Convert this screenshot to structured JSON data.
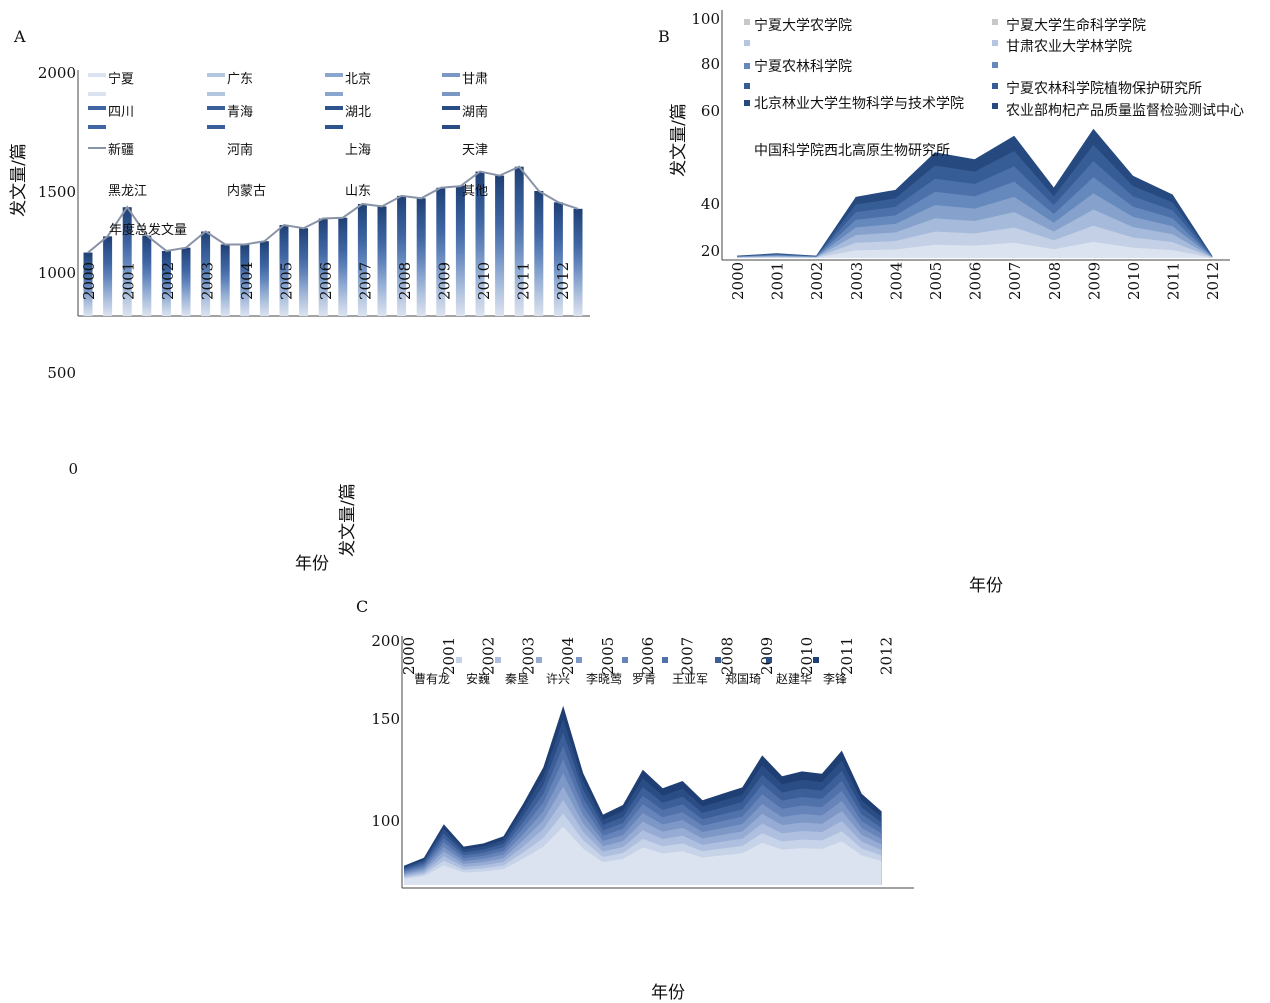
{
  "chart_data": [
    {
      "panel_label": "A",
      "type": "bar",
      "ylabel": "发文量/篇",
      "xlabel": "年份",
      "y_ticks": [
        "2000",
        "1500",
        "1000",
        "500",
        "0"
      ],
      "ylim": [
        0,
        2000
      ],
      "categories": [
        "2000",
        "2001",
        "2002",
        "2003",
        "2004",
        "2005",
        "2006",
        "2007",
        "2008",
        "2009",
        "2010",
        "2011",
        "2012"
      ],
      "total_series_name": "年度总发文量",
      "total_values": [
        1120,
        1400,
        1130,
        1250,
        1170,
        1290,
        1330,
        1420,
        1470,
        1520,
        1620,
        1650,
        1430
      ],
      "legend": [
        "宁夏",
        "广东",
        "北京",
        "甘肃",
        "四川",
        "青海",
        "湖北",
        "湖南",
        "新疆",
        "河南",
        "上海",
        "天津",
        "黑龙江",
        "内蒙古",
        "山东",
        "其他",
        "年度总发文量"
      ],
      "colors": [
        "#dce3f0",
        "#b5c6e0",
        "#8aa6cf",
        "#5f82b9",
        "#3f66a3",
        "#2e548e",
        "#1f3f73"
      ]
    },
    {
      "panel_label": "B",
      "type": "area",
      "ylabel": "发文量/篇",
      "xlabel": "年份",
      "y_ticks": [
        "100",
        "80",
        "60",
        "40",
        "20"
      ],
      "ylim": [
        0,
        100
      ],
      "categories": [
        "2000",
        "2001",
        "2002",
        "2003",
        "2004",
        "2005",
        "2006",
        "2007",
        "2008",
        "2009",
        "2010",
        "2011",
        "2012"
      ],
      "total_values": [
        1,
        2,
        1,
        26,
        29,
        45,
        42,
        52,
        30,
        55,
        35,
        27,
        1
      ],
      "legend": [
        "宁夏大学农学院",
        "宁夏大学生命科学学院",
        "",
        "甘肃农业大学林学院",
        "宁夏农林科学院",
        "",
        "",
        "宁夏农林科学院植物保护研究所",
        "",
        "农业部枸杞产品质量监督检验测试中心",
        "中国科学院西北高原生物研究所"
      ],
      "legend_overlap_text": "北京林业大学生物科学与技术学院",
      "colors": [
        "#dce3f0",
        "#c3d0e6",
        "#a6bbdb",
        "#86a2cc",
        "#6689bd",
        "#4c71aa",
        "#375d96",
        "#264a80"
      ]
    },
    {
      "panel_label": "C",
      "type": "area",
      "xlabel": "年份",
      "y_ticks": [
        "200",
        "150",
        "100"
      ],
      "ylim": [
        0,
        200
      ],
      "categories": [
        "2000",
        "2001",
        "2002",
        "2003",
        "2004",
        "2005",
        "2006",
        "2007",
        "2008",
        "2009",
        "2010",
        "2011",
        "2012"
      ],
      "total_values": [
        62,
        88,
        76,
        101,
        162,
        94,
        122,
        115,
        107,
        131,
        121,
        134,
        96
      ],
      "legend": [
        "曹有龙",
        "安巍",
        "秦垦",
        "许兴",
        "李晓莺",
        "罗青",
        "王亚军",
        "郑国琦",
        "赵建华",
        "李锋"
      ],
      "colors": [
        "#dce3f0",
        "#c6d3e8",
        "#aebfdf",
        "#96acd4",
        "#7d97c6",
        "#6684b9",
        "#5071aa",
        "#3c5f99",
        "#2b4d86",
        "#1f3e73"
      ]
    }
  ]
}
